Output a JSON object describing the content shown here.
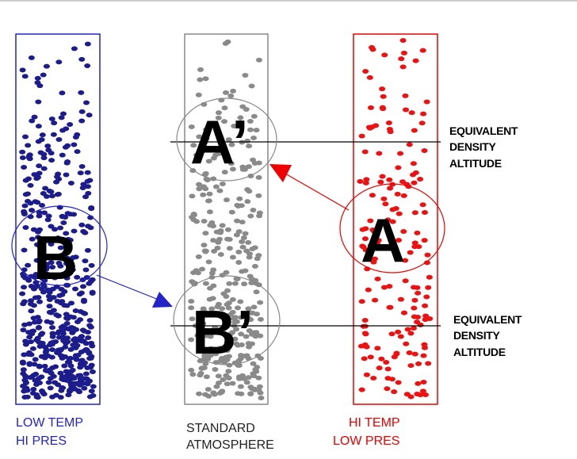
{
  "columns": [
    {
      "lines": [
        "LOW TEMP",
        "HI PRES"
      ],
      "letter": "B"
    },
    {
      "lines": [
        "STANDARD",
        "ATMOSPHERE"
      ],
      "letters": [
        "A’",
        "B’"
      ]
    },
    {
      "lines": [
        "HI TEMP",
        "LOW PRES"
      ],
      "letter": "A"
    }
  ],
  "annotations": [
    {
      "lines": [
        "EQUIVALENT",
        "DENSITY",
        "ALTITUDE"
      ]
    },
    {
      "lines": [
        "EQUIVALENT",
        "DENSITY",
        "ALTITUDE"
      ]
    }
  ]
}
